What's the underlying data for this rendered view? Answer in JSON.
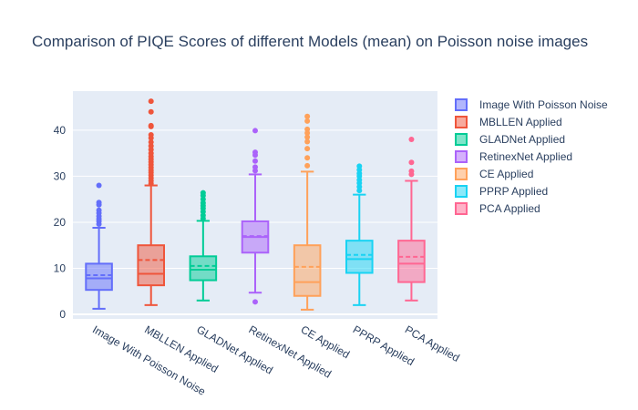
{
  "chart_data": {
    "type": "box",
    "title": "Comparison of PIQE Scores of different Models (mean) on Poisson noise images",
    "xlabel": "",
    "ylabel": "",
    "ylim": [
      -1,
      48.5
    ],
    "yticks": [
      0,
      10,
      20,
      30,
      40
    ],
    "grid": true,
    "legend_position": "right",
    "show_mean": true,
    "series": [
      {
        "name": "Image With Poisson Noise",
        "color": "#636efa",
        "lowerfence": 1.2,
        "q1": 5.3,
        "median": 7.8,
        "mean": 8.5,
        "q3": 11.0,
        "upperfence": 18.8,
        "outliers": [
          19.6,
          20.2,
          20.7,
          21.3,
          22.0,
          22.6,
          23.8,
          24.3,
          28.0
        ]
      },
      {
        "name": "MBLLEN Applied",
        "color": "#ef553b",
        "lowerfence": 2.0,
        "q1": 6.3,
        "median": 8.8,
        "mean": 11.8,
        "q3": 15.0,
        "upperfence": 28.0,
        "outliers": [
          28.4,
          29.0,
          29.6,
          30.2,
          30.8,
          31.3,
          31.9,
          32.5,
          33.1,
          33.7,
          34.3,
          35.0,
          35.8,
          36.6,
          37.4,
          38.3,
          39.0,
          40.8,
          41.0,
          44.0,
          46.3
        ]
      },
      {
        "name": "GLADNet Applied",
        "color": "#00cc96",
        "lowerfence": 3.0,
        "q1": 7.4,
        "median": 9.7,
        "mean": 10.5,
        "q3": 12.6,
        "upperfence": 20.3,
        "outliers": [
          20.8,
          21.5,
          22.3,
          23.0,
          23.6,
          24.2,
          25.0,
          25.8,
          26.4
        ]
      },
      {
        "name": "RetinexNet Applied",
        "color": "#ab63fa",
        "lowerfence": 4.7,
        "q1": 13.4,
        "median": 16.8,
        "mean": 17.0,
        "q3": 20.2,
        "upperfence": 30.4,
        "outliers": [
          2.7,
          31.2,
          32.0,
          33.3,
          34.6,
          35.2,
          39.9
        ]
      },
      {
        "name": "CE Applied",
        "color": "#ffa15a",
        "lowerfence": 1.0,
        "q1": 4.0,
        "median": 7.0,
        "mean": 10.3,
        "q3": 15.0,
        "upperfence": 31.0,
        "outliers": [
          32.3,
          34.0,
          36.0,
          37.5,
          38.5,
          39.4,
          40.2,
          42.0,
          43.0
        ]
      },
      {
        "name": "PPRP Applied",
        "color": "#19d3f3",
        "lowerfence": 2.0,
        "q1": 9.0,
        "median": 12.0,
        "mean": 12.9,
        "q3": 16.0,
        "upperfence": 26.0,
        "outliers": [
          26.9,
          27.7,
          28.5,
          29.2,
          30.0,
          30.6,
          31.4,
          32.2
        ]
      },
      {
        "name": "PCA Applied",
        "color": "#ff6692",
        "lowerfence": 3.0,
        "q1": 7.0,
        "median": 11.0,
        "mean": 12.5,
        "q3": 16.0,
        "upperfence": 29.0,
        "outliers": [
          30.4,
          31.1,
          33.0,
          38.0
        ]
      }
    ]
  }
}
